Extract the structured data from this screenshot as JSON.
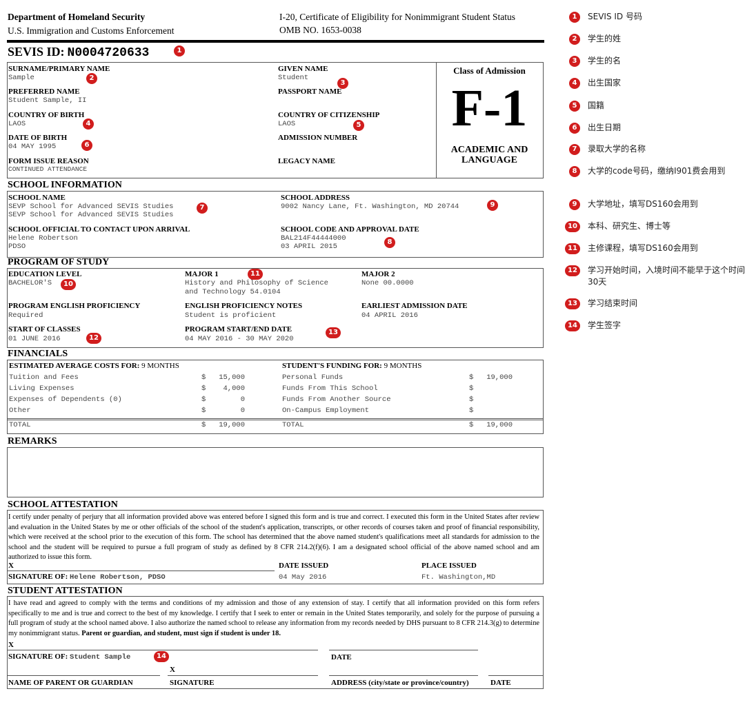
{
  "header": {
    "agency": "Department of Homeland Security",
    "sub_agency": "U.S. Immigration and Customs Enforcement",
    "form_title": "I-20, Certificate of Eligibility for Nonimmigrant Student Status",
    "omb": "OMB NO. 1653-0038"
  },
  "sevis": {
    "label": "SEVIS ID:",
    "value": "N0004720633"
  },
  "student": {
    "surname_label": "SURNAME/PRIMARY NAME",
    "surname": "Sample",
    "given_label": "GIVEN NAME",
    "given": "Student",
    "preferred_label": "PREFERRED NAME",
    "preferred": "Student Sample, II",
    "passport_label": "PASSPORT NAME",
    "cob_label": "COUNTRY OF BIRTH",
    "cob": "LAOS",
    "coc_label": "COUNTRY OF CITIZENSHIP",
    "coc": "LAOS",
    "dob_label": "DATE OF BIRTH",
    "dob": "04 MAY 1995",
    "admission_label": "ADMISSION NUMBER",
    "reason_label": "FORM ISSUE REASON",
    "reason": "CONTINUED ATTENDANCE",
    "legacy_label": "LEGACY NAME"
  },
  "class_of_admission": {
    "label": "Class of Admission",
    "value": "F-1",
    "desc1": "ACADEMIC AND",
    "desc2": "LANGUAGE"
  },
  "school": {
    "heading": "SCHOOL INFORMATION",
    "name_label": "SCHOOL NAME",
    "name1": "SEVP School for Advanced SEVIS Studies",
    "name2": "SEVP School for Advanced SEVIS Studies",
    "address_label": "SCHOOL ADDRESS",
    "address": "9002 Nancy Lane, Ft. Washington, MD 20744",
    "official_label": "SCHOOL OFFICIAL TO CONTACT UPON ARRIVAL",
    "official": "Helene Robertson",
    "official_title": "PDSO",
    "code_label": "SCHOOL CODE AND APPROVAL DATE",
    "code": "BAL214F44444000",
    "approval_date": "03 APRIL 2015"
  },
  "program": {
    "heading": "PROGRAM OF STUDY",
    "level_label": "EDUCATION LEVEL",
    "level": "BACHELOR'S",
    "major1_label": "MAJOR 1",
    "major1_a": "History and Philosophy of Science",
    "major1_b": "and Technology 54.0104",
    "major2_label": "MAJOR 2",
    "major2": "None 00.0000",
    "eng_label": "PROGRAM ENGLISH PROFICIENCY",
    "eng": "Required",
    "eng_notes_label": "ENGLISH PROFICIENCY NOTES",
    "eng_notes": "Student is proficient",
    "earliest_label": "EARLIEST ADMISSION DATE",
    "earliest": "04 APRIL 2016",
    "start_label": "START OF CLASSES",
    "start": "01 JUNE 2016",
    "dates_label": "PROGRAM START/END DATE",
    "dates": "04 MAY 2016 - 30 MAY 2020"
  },
  "financials": {
    "heading": "FINANCIALS",
    "costs_label": "ESTIMATED AVERAGE COSTS FOR:",
    "costs_period": "9 MONTHS",
    "funding_label": "STUDENT'S FUNDING FOR:",
    "funding_period": "9 MONTHS",
    "costs": [
      {
        "item": "Tuition and Fees",
        "cur": "$",
        "amount": "15,000"
      },
      {
        "item": "Living Expenses",
        "cur": "$",
        "amount": "4,000"
      },
      {
        "item": "Expenses of Dependents (0)",
        "cur": "$",
        "amount": "0"
      },
      {
        "item": "Other",
        "cur": "$",
        "amount": "0"
      }
    ],
    "funding": [
      {
        "item": "Personal Funds",
        "cur": "$",
        "amount": "19,000"
      },
      {
        "item": "Funds From This School",
        "cur": "$",
        "amount": ""
      },
      {
        "item": "Funds From Another Source",
        "cur": "$",
        "amount": ""
      },
      {
        "item": "On-Campus Employment",
        "cur": "$",
        "amount": ""
      }
    ],
    "total_label": "TOTAL",
    "costs_total": "19,000",
    "funding_total": "19,000",
    "cur": "$"
  },
  "remarks": {
    "heading": "REMARKS"
  },
  "school_attestation": {
    "heading": "SCHOOL ATTESTATION",
    "text": "I certify under penalty of perjury that all information provided above was entered before I signed this form and is true and correct. I executed this form in the United States after review and evaluation in the United States by me or other officials of the school of the student's application, transcripts, or other records of courses taken and proof of financial responsibility, which were received at the school prior to the execution of this form. The school has determined that the above named student's qualifications meet all standards for admission to the school and the student will be required to pursue a full program of study as defined by 8 CFR 214.2(f)(6). I am a designated school official of the above named school and am authorized to issue this form.",
    "x": "X",
    "sig_label": "SIGNATURE OF:",
    "sig": "Helene Robertson, PDSO",
    "date_label": "DATE ISSUED",
    "date": "04 May 2016",
    "place_label": "PLACE ISSUED",
    "place": "Ft. Washington,MD"
  },
  "student_attestation": {
    "heading": "STUDENT ATTESTATION",
    "text": "I have read and agreed to comply with the terms and conditions of my admission and those of any extension of stay. I certify that all information provided on this form refers specifically to me and is true and correct to the best of my knowledge. I certify that I seek to enter or remain in the United States temporarily, and solely for the purpose of pursuing a full program of study at the school named above. I also authorize the named school to release any information from my records needed by DHS pursuant to 8 CFR 214.3(g) to determine my nonimmigrant status.",
    "text_bold": "Parent or guardian, and student, must sign if student is under 18.",
    "x": "X",
    "sig_label": "SIGNATURE OF:",
    "sig": "Student Sample",
    "date_label": "DATE",
    "parent_label": "NAME OF PARENT OR GUARDIAN",
    "signature_label": "SIGNATURE",
    "address_label": "ADDRESS (city/state or province/country)",
    "date2_label": "DATE"
  },
  "badge_color": "#d11d1d",
  "badges": [
    "1",
    "2",
    "3",
    "4",
    "5",
    "6",
    "7",
    "8",
    "9",
    "10",
    "11",
    "12",
    "13",
    "14"
  ],
  "notes": [
    "SEVIS ID 号码",
    "学生的姓",
    "学生的名",
    "出生国家",
    "国籍",
    "出生日期",
    "录取大学的名称",
    "大学的code号码，缴纳I901费会用到",
    "大学地址，填写DS160会用到",
    "本科、研究生、博士等",
    "主修课程，填写DS160会用到",
    "学习开始时间，入境时间不能早于这个时间 30天",
    "学习结束时间",
    "学生签字"
  ]
}
